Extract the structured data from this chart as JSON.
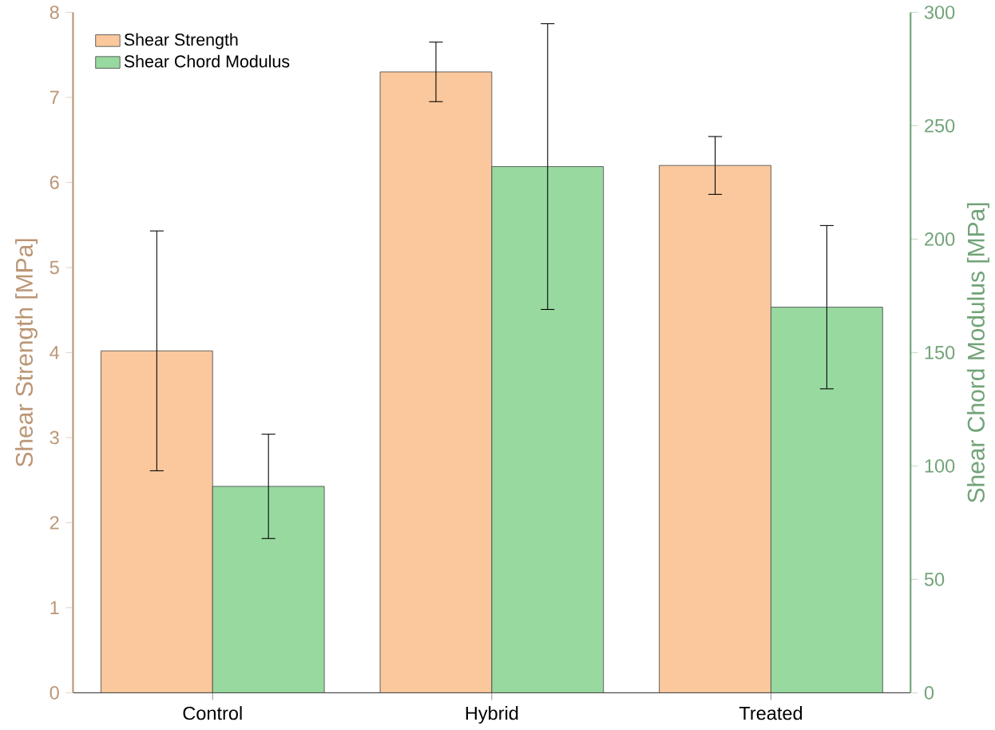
{
  "chart_data": {
    "type": "bar",
    "categories": [
      "Control",
      "Hybrid",
      "Treated"
    ],
    "ylabel": "Shear Strength [MPa]",
    "y2label": "Shear Chord Modulus [MPa]",
    "ylim": [
      0,
      8
    ],
    "yticks": [
      0,
      1,
      2,
      3,
      4,
      5,
      6,
      7,
      8
    ],
    "y2lim": [
      0,
      300
    ],
    "y2ticks": [
      0,
      50,
      100,
      150,
      200,
      250,
      300
    ],
    "legend": "top left",
    "series": [
      {
        "name": "Shear Strength",
        "color": "#fac89c",
        "values": [
          4.02,
          7.3,
          6.2
        ],
        "errors": [
          1.41,
          0.35,
          0.34
        ]
      },
      {
        "name": "Shear Chord Modulus",
        "color": "#98d9a0",
        "axis": "y2",
        "values": [
          91,
          232,
          170
        ],
        "errors": [
          23,
          63,
          36
        ]
      }
    ]
  }
}
